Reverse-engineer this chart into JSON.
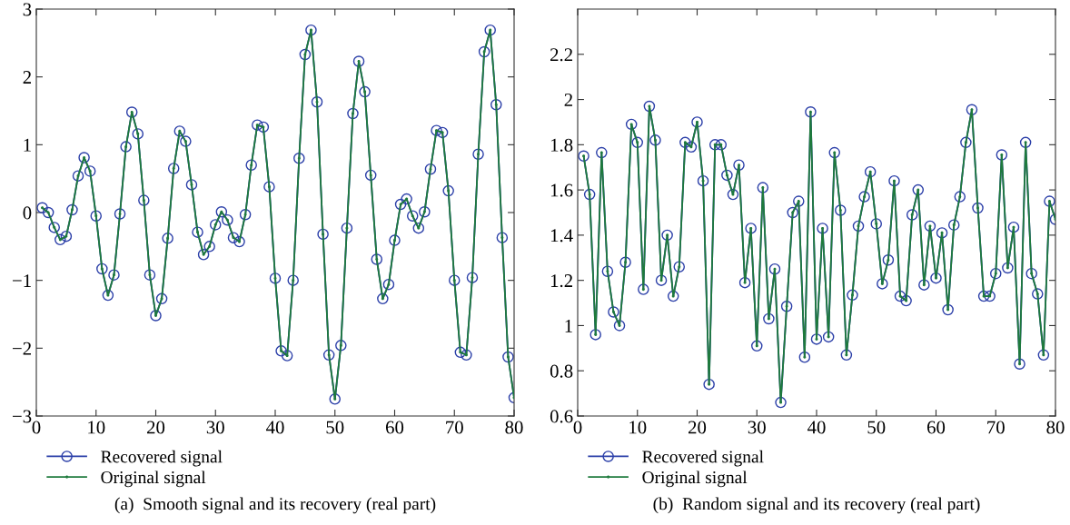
{
  "chart_data": [
    {
      "type": "line",
      "annotations": [
        "(a)  Smooth signal and its recovery (real part)"
      ],
      "xlim": [
        0,
        80
      ],
      "xticks": [
        0,
        10,
        20,
        30,
        40,
        50,
        60,
        70,
        80
      ],
      "ylim": [
        -3,
        3
      ],
      "yticks": [
        {
          "value": -3,
          "label": "−3"
        },
        {
          "value": -2,
          "label": "−2"
        },
        {
          "value": -1,
          "label": "−1"
        },
        0,
        1,
        2,
        3
      ],
      "grid": false,
      "legend": "bottom left",
      "line_style": "solid",
      "x": [
        1,
        2,
        3,
        4,
        5,
        6,
        7,
        8,
        9,
        10,
        11,
        12,
        13,
        14,
        15,
        16,
        17,
        18,
        19,
        20,
        21,
        22,
        23,
        24,
        25,
        26,
        27,
        28,
        29,
        30,
        31,
        32,
        33,
        34,
        35,
        36,
        37,
        38,
        39,
        40,
        41,
        42,
        43,
        44,
        45,
        46,
        47,
        48,
        49,
        50,
        51,
        52,
        53,
        54,
        55,
        56,
        57,
        58,
        59,
        60,
        61,
        62,
        63,
        64,
        65,
        66,
        67,
        68,
        69,
        70,
        71,
        72,
        73,
        74,
        75,
        76,
        77,
        78,
        79,
        80
      ],
      "series": [
        {
          "name": "Recovered signal",
          "color": "#2b3fa8",
          "marker": "circle",
          "values": [
            0.07,
            0.0,
            -0.22,
            -0.4,
            -0.35,
            0.04,
            0.54,
            0.81,
            0.61,
            -0.05,
            -0.83,
            -1.22,
            -0.92,
            -0.02,
            0.97,
            1.48,
            1.16,
            0.18,
            -0.92,
            -1.52,
            -1.27,
            -0.38,
            0.65,
            1.2,
            1.05,
            0.41,
            -0.29,
            -0.62,
            -0.5,
            -0.18,
            0.01,
            -0.11,
            -0.37,
            -0.43,
            -0.03,
            0.7,
            1.29,
            1.26,
            0.38,
            -0.97,
            -2.04,
            -2.11,
            -1.0,
            0.8,
            2.33,
            2.69,
            1.63,
            -0.32,
            -2.1,
            -2.75,
            -1.96,
            -0.23,
            1.46,
            2.23,
            1.78,
            0.55,
            -0.69,
            -1.27,
            -1.06,
            -0.41,
            0.12,
            0.2,
            -0.05,
            -0.23,
            0.01,
            0.64,
            1.21,
            1.18,
            0.32,
            -1.0,
            -2.06,
            -2.1,
            -0.96,
            0.86,
            2.37,
            2.69,
            1.59,
            -0.37,
            -2.13,
            -2.73
          ]
        },
        {
          "name": "Original signal",
          "color": "#1e7a3c",
          "marker": "circle",
          "values": [
            0.07,
            0.0,
            -0.22,
            -0.4,
            -0.35,
            0.04,
            0.54,
            0.81,
            0.61,
            -0.05,
            -0.83,
            -1.22,
            -0.92,
            -0.02,
            0.97,
            1.48,
            1.16,
            0.18,
            -0.92,
            -1.52,
            -1.27,
            -0.38,
            0.65,
            1.2,
            1.05,
            0.41,
            -0.29,
            -0.62,
            -0.5,
            -0.18,
            0.01,
            -0.11,
            -0.37,
            -0.43,
            -0.03,
            0.7,
            1.29,
            1.26,
            0.38,
            -0.97,
            -2.04,
            -2.11,
            -1.0,
            0.8,
            2.33,
            2.69,
            1.63,
            -0.32,
            -2.1,
            -2.75,
            -1.96,
            -0.23,
            1.46,
            2.23,
            1.78,
            0.55,
            -0.69,
            -1.27,
            -1.06,
            -0.41,
            0.12,
            0.2,
            -0.05,
            -0.23,
            0.01,
            0.64,
            1.21,
            1.18,
            0.32,
            -1.0,
            -2.06,
            -2.1,
            -0.96,
            0.86,
            2.37,
            2.69,
            1.59,
            -0.37,
            -2.13,
            -2.73
          ]
        }
      ]
    },
    {
      "type": "line",
      "annotations": [
        "(b)  Random signal and its recovery (real part)"
      ],
      "xlim": [
        0,
        80
      ],
      "xticks": [
        0,
        10,
        20,
        30,
        40,
        50,
        60,
        70,
        80
      ],
      "ylim": [
        0.6,
        2.4
      ],
      "yticks": [
        0.6,
        0.8,
        1,
        1.2,
        1.4,
        1.6,
        1.8,
        2,
        2.2
      ],
      "grid": false,
      "legend": "bottom left",
      "line_style": "solid",
      "x": [
        1,
        2,
        3,
        4,
        5,
        6,
        7,
        8,
        9,
        10,
        11,
        12,
        13,
        14,
        15,
        16,
        17,
        18,
        19,
        20,
        21,
        22,
        23,
        24,
        25,
        26,
        27,
        28,
        29,
        30,
        31,
        32,
        33,
        34,
        35,
        36,
        37,
        38,
        39,
        40,
        41,
        42,
        43,
        44,
        45,
        46,
        47,
        48,
        49,
        50,
        51,
        52,
        53,
        54,
        55,
        56,
        57,
        58,
        59,
        60,
        61,
        62,
        63,
        64,
        65,
        66,
        67,
        68,
        69,
        70,
        71,
        72,
        73,
        74,
        75,
        76,
        77,
        78,
        79,
        80
      ],
      "series": [
        {
          "name": "Recovered signal",
          "color": "#2b3fa8",
          "marker": "circle",
          "values": [
            1.75,
            1.58,
            0.96,
            1.765,
            1.24,
            1.06,
            1.0,
            1.28,
            1.89,
            1.81,
            1.16,
            1.97,
            1.82,
            1.2,
            1.4,
            1.13,
            1.26,
            1.81,
            1.79,
            1.9,
            1.64,
            0.74,
            1.8,
            1.8,
            1.665,
            1.58,
            1.71,
            1.19,
            1.43,
            0.91,
            1.61,
            1.03,
            1.25,
            0.66,
            1.085,
            1.5,
            1.55,
            0.86,
            1.945,
            0.94,
            1.43,
            0.95,
            1.765,
            1.51,
            0.87,
            1.135,
            1.44,
            1.57,
            1.68,
            1.45,
            1.185,
            1.29,
            1.64,
            1.13,
            1.11,
            1.49,
            1.6,
            1.18,
            1.44,
            1.21,
            1.41,
            1.07,
            1.445,
            1.57,
            1.81,
            1.955,
            1.52,
            1.13,
            1.13,
            1.23,
            1.755,
            1.255,
            1.435,
            0.83,
            1.81,
            1.23,
            1.14,
            0.87,
            1.55,
            1.47
          ]
        },
        {
          "name": "Original signal",
          "color": "#1e7a3c",
          "marker": "circle",
          "values": [
            1.75,
            1.58,
            0.96,
            1.765,
            1.24,
            1.06,
            1.0,
            1.28,
            1.89,
            1.81,
            1.16,
            1.97,
            1.82,
            1.2,
            1.4,
            1.13,
            1.26,
            1.81,
            1.79,
            1.9,
            1.64,
            0.74,
            1.8,
            1.8,
            1.665,
            1.58,
            1.71,
            1.19,
            1.43,
            0.91,
            1.61,
            1.03,
            1.25,
            0.66,
            1.085,
            1.5,
            1.55,
            0.86,
            1.945,
            0.94,
            1.43,
            0.95,
            1.765,
            1.51,
            0.87,
            1.135,
            1.44,
            1.57,
            1.68,
            1.45,
            1.185,
            1.29,
            1.64,
            1.13,
            1.11,
            1.49,
            1.6,
            1.18,
            1.44,
            1.21,
            1.41,
            1.07,
            1.445,
            1.57,
            1.81,
            1.955,
            1.52,
            1.13,
            1.13,
            1.23,
            1.755,
            1.255,
            1.435,
            0.83,
            1.81,
            1.23,
            1.14,
            0.87,
            1.55,
            1.47
          ]
        }
      ]
    }
  ]
}
